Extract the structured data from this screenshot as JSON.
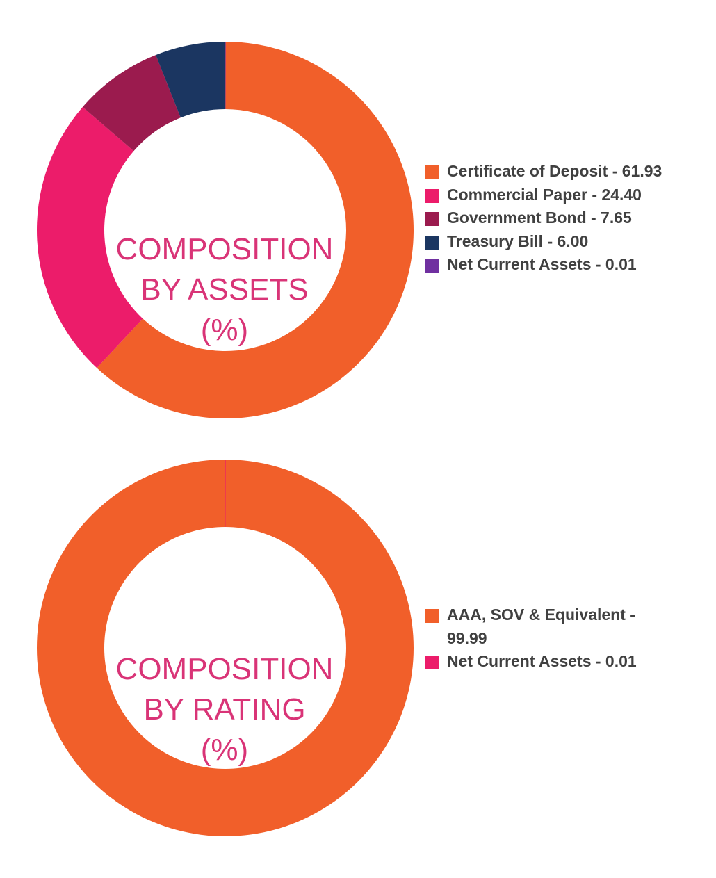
{
  "chart_data": [
    {
      "type": "pie",
      "variant": "donut",
      "center_label": [
        "COMPOSITION",
        "BY ASSETS",
        "(%)"
      ],
      "legend_position": "right",
      "categories": [
        "Certificate of Deposit",
        "Commercial Paper",
        "Government Bond",
        "Treasury Bill",
        "Net Current Assets"
      ],
      "values": [
        61.93,
        24.4,
        7.65,
        6.0,
        0.01
      ],
      "value_labels": [
        "61.93",
        "24.40",
        "7.65",
        "6.00",
        "0.01"
      ],
      "legend_labels": [
        "Certificate of Deposit - 61.93",
        "Commercial Paper - 24.40",
        "Government Bond - 7.65",
        "Treasury Bill - 6.00",
        "Net Current Assets - 0.01"
      ],
      "colors": [
        "#f15f2a",
        "#ec1c6a",
        "#9b1b4e",
        "#1b3661",
        "#7030a0"
      ]
    },
    {
      "type": "pie",
      "variant": "donut",
      "center_label": [
        "COMPOSITION",
        "BY RATING",
        "(%)"
      ],
      "legend_position": "right",
      "categories": [
        "AAA, SOV & Equivalent",
        "Net Current Assets"
      ],
      "values": [
        99.99,
        0.01
      ],
      "value_labels": [
        "99.99",
        "0.01"
      ],
      "legend_labels": [
        "AAA, SOV & Equivalent - 99.99",
        "Net Current Assets - 0.01"
      ],
      "colors": [
        "#f15f2a",
        "#ec1c6a"
      ]
    }
  ]
}
